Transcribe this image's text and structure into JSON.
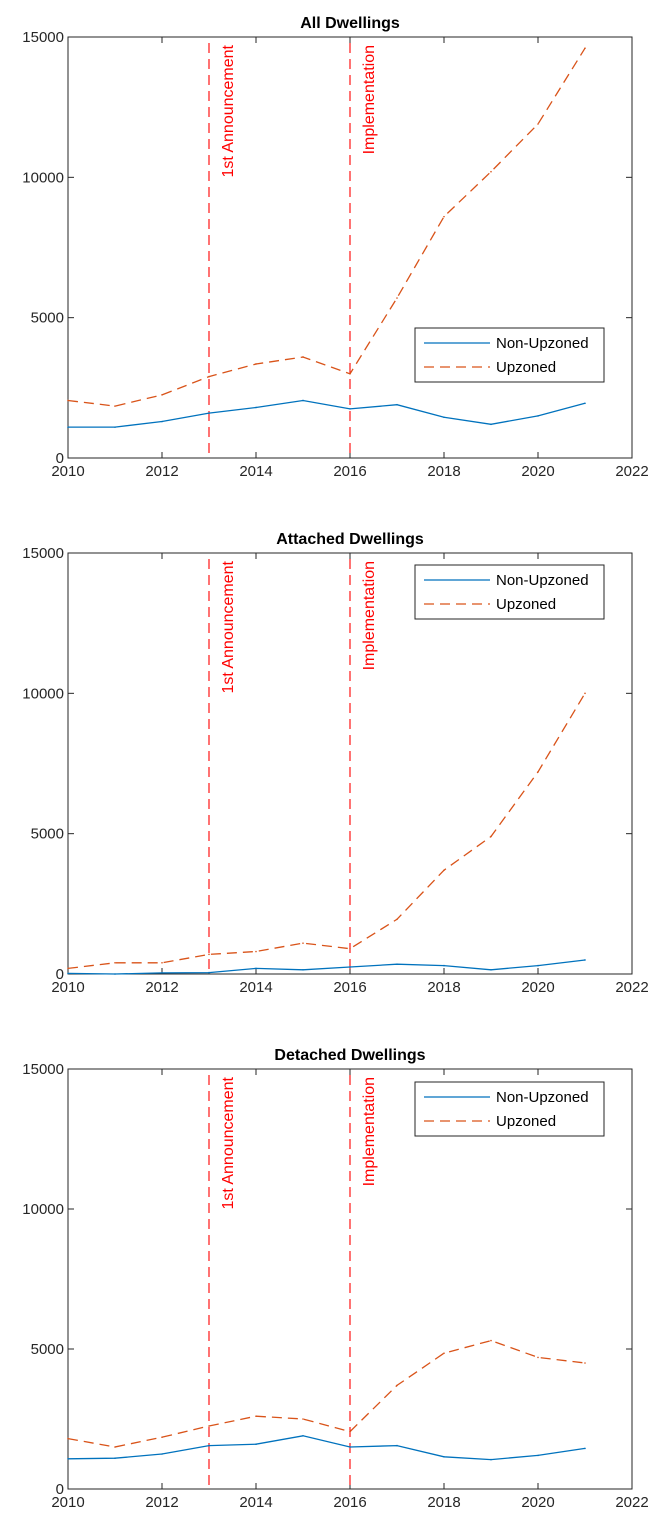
{
  "chart_data": [
    {
      "type": "line",
      "title": "All Dwellings",
      "xlabel": "",
      "ylabel": "",
      "xlim": [
        2010,
        2022
      ],
      "ylim": [
        0,
        15000
      ],
      "xticks": [
        2010,
        2012,
        2014,
        2016,
        2018,
        2020,
        2022
      ],
      "xtick_labels": [
        "2010",
        "2012",
        "2014",
        "2016",
        "2018",
        "2020",
        "2022"
      ],
      "yticks": [
        0,
        5000,
        10000,
        15000
      ],
      "ytick_labels": [
        "0",
        "5000",
        "10000",
        "15000"
      ],
      "grid": false,
      "legend_position": "middle-right",
      "x": [
        2010,
        2011,
        2012,
        2013,
        2014,
        2015,
        2016,
        2017,
        2018,
        2019,
        2020,
        2021
      ],
      "series": [
        {
          "name": "Non-Upzoned",
          "color": "#0072BD",
          "style": "solid",
          "values": [
            1100,
            1100,
            1300,
            1600,
            1800,
            2050,
            1750,
            1900,
            1450,
            1200,
            1500,
            1950
          ]
        },
        {
          "name": "Upzoned",
          "color": "#D95319",
          "style": "dashed",
          "values": [
            2050,
            1850,
            2250,
            2900,
            3350,
            3600,
            3000,
            5700,
            8600,
            10200,
            11900,
            14600
          ]
        }
      ],
      "vlines": [
        {
          "x": 2013,
          "label": "1st Announcement",
          "color": "#FF0000"
        },
        {
          "x": 2016,
          "label": "Implementation",
          "color": "#FF0000"
        }
      ]
    },
    {
      "type": "line",
      "title": "Attached Dwellings",
      "xlabel": "",
      "ylabel": "",
      "xlim": [
        2010,
        2022
      ],
      "ylim": [
        0,
        15000
      ],
      "xticks": [
        2010,
        2012,
        2014,
        2016,
        2018,
        2020,
        2022
      ],
      "xtick_labels": [
        "2010",
        "2012",
        "2014",
        "2016",
        "2018",
        "2020",
        "2022"
      ],
      "yticks": [
        0,
        5000,
        10000,
        15000
      ],
      "ytick_labels": [
        "0",
        "5000",
        "10000",
        "15000"
      ],
      "grid": false,
      "legend_position": "top-right",
      "x": [
        2010,
        2011,
        2012,
        2013,
        2014,
        2015,
        2016,
        2017,
        2018,
        2019,
        2020,
        2021
      ],
      "series": [
        {
          "name": "Non-Upzoned",
          "color": "#0072BD",
          "style": "solid",
          "values": [
            20,
            0,
            40,
            50,
            200,
            150,
            250,
            350,
            300,
            150,
            300,
            500
          ]
        },
        {
          "name": "Upzoned",
          "color": "#D95319",
          "style": "dashed",
          "values": [
            200,
            400,
            400,
            700,
            800,
            1100,
            900,
            1950,
            3700,
            4900,
            7200,
            10000
          ]
        }
      ],
      "vlines": [
        {
          "x": 2013,
          "label": "1st Announcement",
          "color": "#FF0000"
        },
        {
          "x": 2016,
          "label": "Implementation",
          "color": "#FF0000"
        }
      ]
    },
    {
      "type": "line",
      "title": "Detached Dwellings",
      "xlabel": "",
      "ylabel": "",
      "xlim": [
        2010,
        2022
      ],
      "ylim": [
        0,
        15000
      ],
      "xticks": [
        2010,
        2012,
        2014,
        2016,
        2018,
        2020,
        2022
      ],
      "xtick_labels": [
        "2010",
        "2012",
        "2014",
        "2016",
        "2018",
        "2020",
        "2022"
      ],
      "yticks": [
        0,
        5000,
        10000,
        15000
      ],
      "ytick_labels": [
        "0",
        "5000",
        "10000",
        "15000"
      ],
      "grid": false,
      "legend_position": "top-right",
      "x": [
        2010,
        2011,
        2012,
        2013,
        2014,
        2015,
        2016,
        2017,
        2018,
        2019,
        2020,
        2021
      ],
      "series": [
        {
          "name": "Non-Upzoned",
          "color": "#0072BD",
          "style": "solid",
          "values": [
            1080,
            1100,
            1250,
            1550,
            1600,
            1900,
            1500,
            1550,
            1150,
            1050,
            1200,
            1450
          ]
        },
        {
          "name": "Upzoned",
          "color": "#D95319",
          "style": "dashed",
          "values": [
            1800,
            1500,
            1850,
            2250,
            2600,
            2500,
            2050,
            3700,
            4850,
            5300,
            4700,
            4500
          ]
        }
      ],
      "vlines": [
        {
          "x": 2013,
          "label": "1st Announcement",
          "color": "#FF0000"
        },
        {
          "x": 2016,
          "label": "Implementation",
          "color": "#FF0000"
        }
      ]
    }
  ]
}
